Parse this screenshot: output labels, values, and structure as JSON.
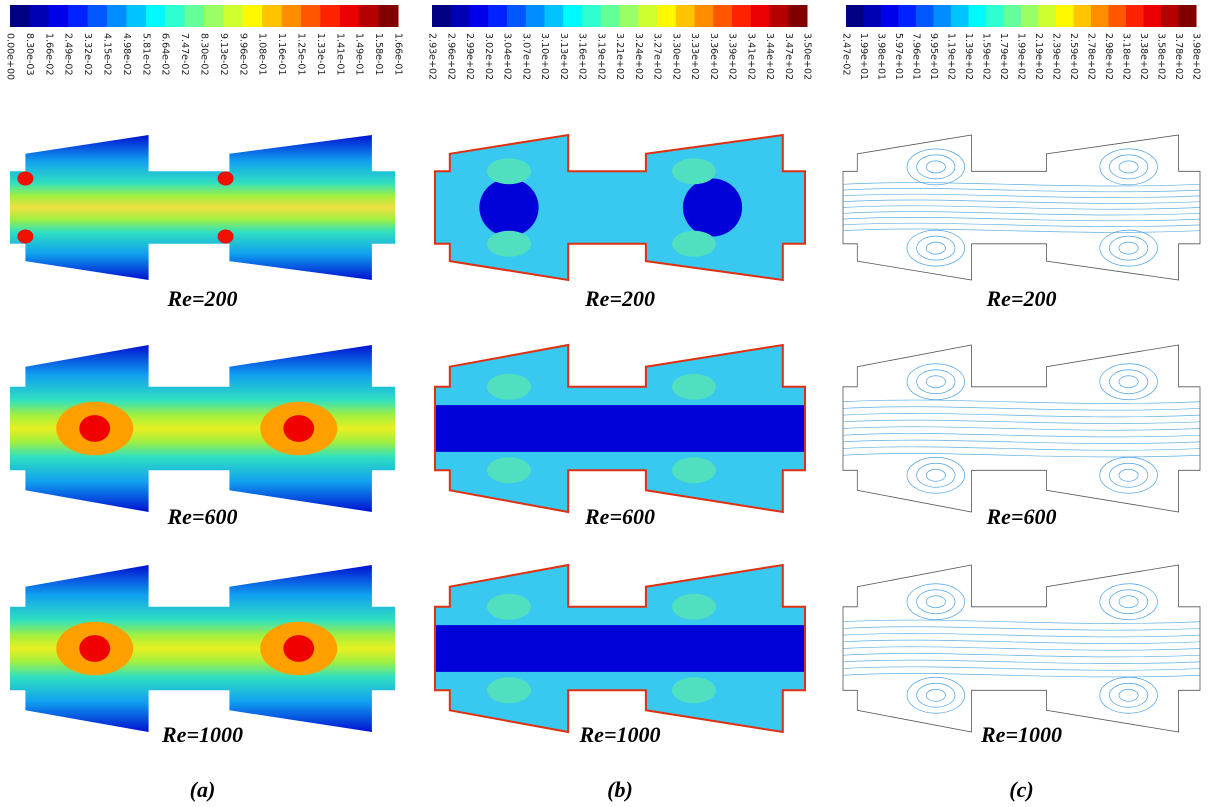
{
  "columns": [
    {
      "colorbar_labels": [
        "0.00e+00",
        "8.30e-03",
        "1.66e-02",
        "2.49e-02",
        "3.32e-02",
        "4.15e-02",
        "4.98e-02",
        "5.81e-02",
        "6.64e-02",
        "7.47e-02",
        "8.30e-02",
        "9.13e-02",
        "9.96e-02",
        "1.08e-01",
        "1.16e-01",
        "1.25e-01",
        "1.33e-01",
        "1.41e-01",
        "1.49e-01",
        "1.58e-01",
        "1.66e-01"
      ],
      "panels": [
        "Re=200",
        "Re=600",
        "Re=1000"
      ],
      "label": "(a)"
    },
    {
      "colorbar_labels": [
        "2.93e+02",
        "2.96e+02",
        "2.99e+02",
        "3.02e+02",
        "3.04e+02",
        "3.07e+02",
        "3.10e+02",
        "3.13e+02",
        "3.16e+02",
        "3.19e+02",
        "3.21e+02",
        "3.24e+02",
        "3.27e+02",
        "3.30e+02",
        "3.33e+02",
        "3.36e+02",
        "3.39e+02",
        "3.41e+02",
        "3.44e+02",
        "3.47e+02",
        "3.50e+02"
      ],
      "panels": [
        "Re=200",
        "Re=600",
        "Re=1000"
      ],
      "label": "(b)"
    },
    {
      "colorbar_labels": [
        "2.47e-02",
        "1.99e+01",
        "3.98e+01",
        "5.97e+01",
        "7.96e+01",
        "9.95e+01",
        "1.19e+02",
        "1.39e+02",
        "1.59e+02",
        "1.79e+02",
        "1.99e+02",
        "2.19e+02",
        "2.39e+02",
        "2.59e+02",
        "2.78e+02",
        "2.98e+02",
        "3.18e+02",
        "3.38e+02",
        "3.58e+02",
        "3.78e+02",
        "3.98e+02"
      ],
      "panels": [
        "Re=200",
        "Re=600",
        "Re=1000"
      ],
      "label": "(c)"
    }
  ]
}
